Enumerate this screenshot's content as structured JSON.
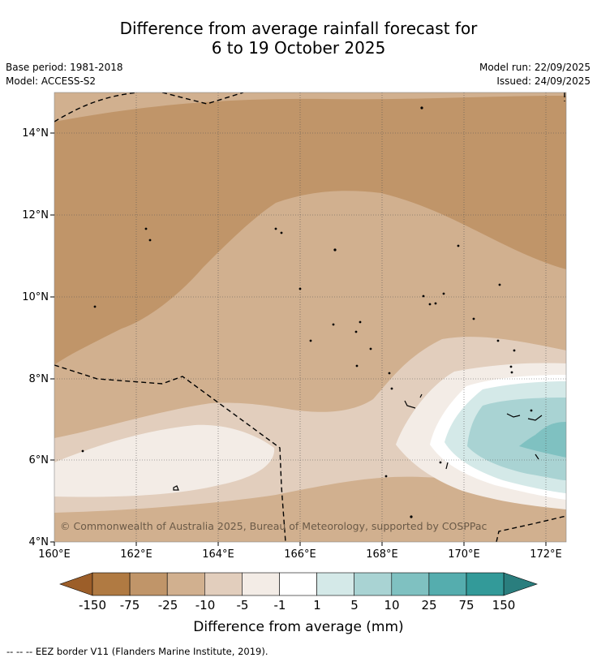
{
  "title": {
    "line1": "Difference from average rainfall forecast for",
    "line2": "6 to 19 October 2025"
  },
  "info": {
    "base_period": "Base period: 1981-2018",
    "model": "Model: ACCESS-S2",
    "model_run": "Model run: 22/09/2025",
    "issued": "Issued: 24/09/2025"
  },
  "map": {
    "longitude_ticks": [
      "160°E",
      "162°E",
      "164°E",
      "166°E",
      "168°E",
      "170°E",
      "172°E"
    ],
    "latitude_ticks": [
      "14°N",
      "12°N",
      "10°N",
      "8°N",
      "6°N",
      "4°N"
    ],
    "copyright": "© Commonwealth of Australia 2025, Bureau of Meteorology, supported by COSPPac"
  },
  "legend": {
    "label": "Difference from average (mm)",
    "ticks": [
      "-150",
      "-75",
      "-25",
      "-10",
      "-5",
      "-1",
      "1",
      "5",
      "10",
      "25",
      "75",
      "150"
    ],
    "colors": [
      "#9c5e29",
      "#b07a42",
      "#c09569",
      "#d1b08f",
      "#e2cebd",
      "#f3ece6",
      "#ffffff",
      "#d4e9e8",
      "#a9d3d3",
      "#7fc1c1",
      "#55adae",
      "#339a99",
      "#2a7e7e"
    ]
  },
  "footer": "--  --  -- EEZ border V11 (Flanders Marine Institute, 2019)."
}
